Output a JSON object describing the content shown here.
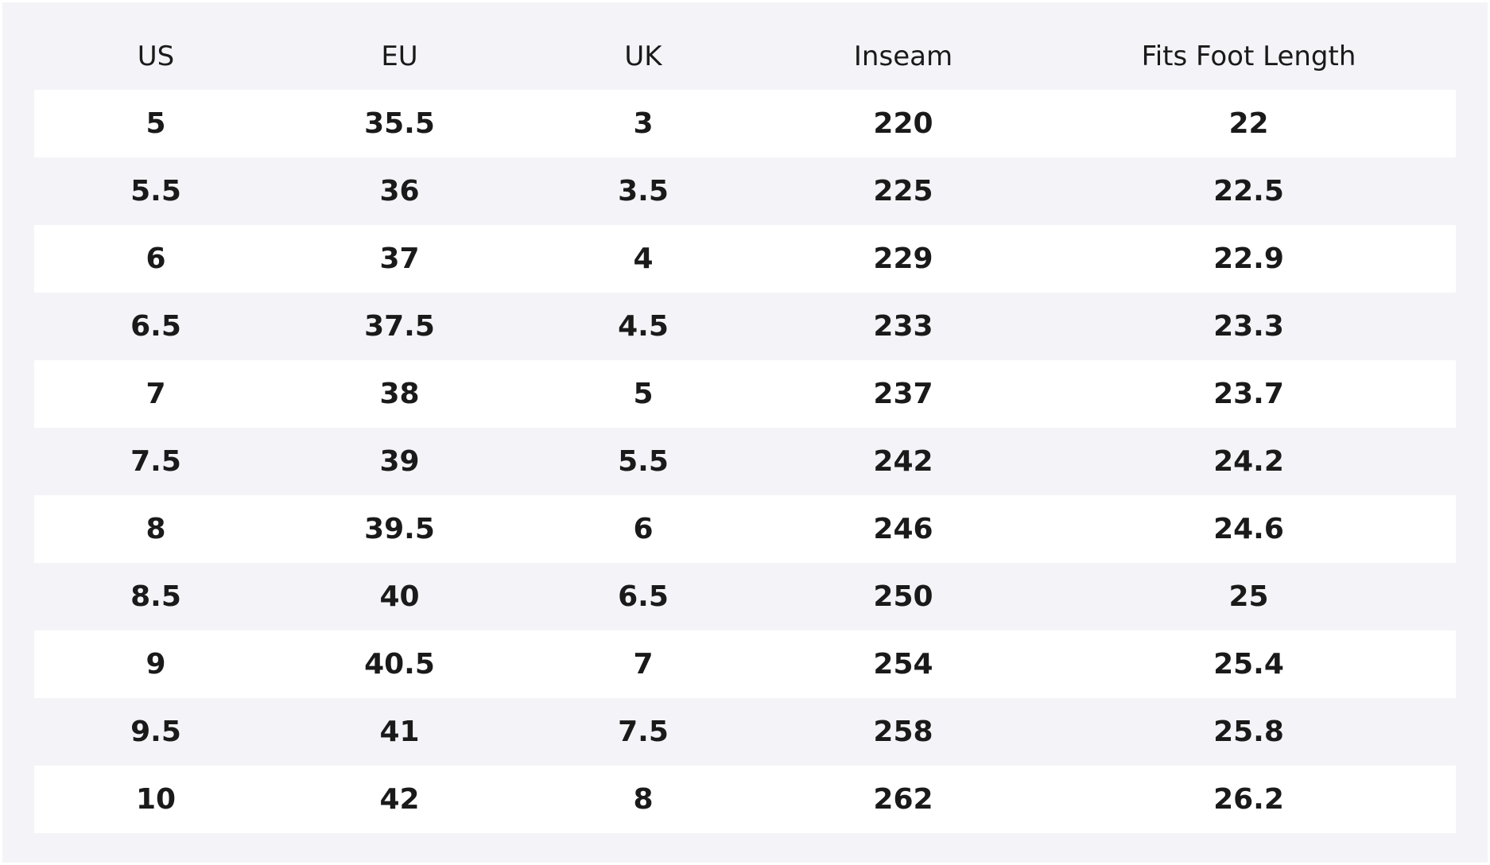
{
  "table": {
    "headers": [
      "US",
      "EU",
      "UK",
      "Inseam",
      "Fits Foot Length"
    ],
    "rows": [
      [
        "5",
        "35.5",
        "3",
        "220",
        "22"
      ],
      [
        "5.5",
        "36",
        "3.5",
        "225",
        "22.5"
      ],
      [
        "6",
        "37",
        "4",
        "229",
        "22.9"
      ],
      [
        "6.5",
        "37.5",
        "4.5",
        "233",
        "23.3"
      ],
      [
        "7",
        "38",
        "5",
        "237",
        "23.7"
      ],
      [
        "7.5",
        "39",
        "5.5",
        "242",
        "24.2"
      ],
      [
        "8",
        "39.5",
        "6",
        "246",
        "24.6"
      ],
      [
        "8.5",
        "40",
        "6.5",
        "250",
        "25"
      ],
      [
        "9",
        "40.5",
        "7",
        "254",
        "25.4"
      ],
      [
        "9.5",
        "41",
        "7.5",
        "258",
        "25.8"
      ],
      [
        "10",
        "42",
        "8",
        "262",
        "26.2"
      ]
    ]
  },
  "colors": {
    "panel_background": "#f4f4f8",
    "alt_row_background": "#ffffff",
    "text": "#1a1a1a"
  }
}
